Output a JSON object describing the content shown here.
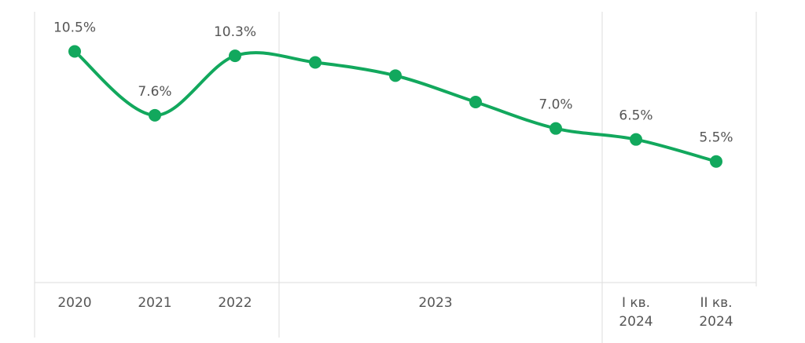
{
  "chart_data": {
    "type": "line",
    "categories": [
      "2020",
      "2021",
      "2022",
      null,
      null,
      null,
      null,
      "I кв. 2024",
      "II кв. 2024"
    ],
    "group_label": "2023",
    "series": [
      {
        "color": "#12a85d",
        "values": [
          10.5,
          7.6,
          10.3,
          10.0,
          9.4,
          8.2,
          7.0,
          6.5,
          5.5
        ],
        "value_labels": [
          "10.5%",
          "7.6%",
          "10.3%",
          null,
          null,
          null,
          "7.0%",
          "6.5%",
          "5.5%"
        ]
      }
    ],
    "ylim": [
      0,
      12.3
    ]
  }
}
